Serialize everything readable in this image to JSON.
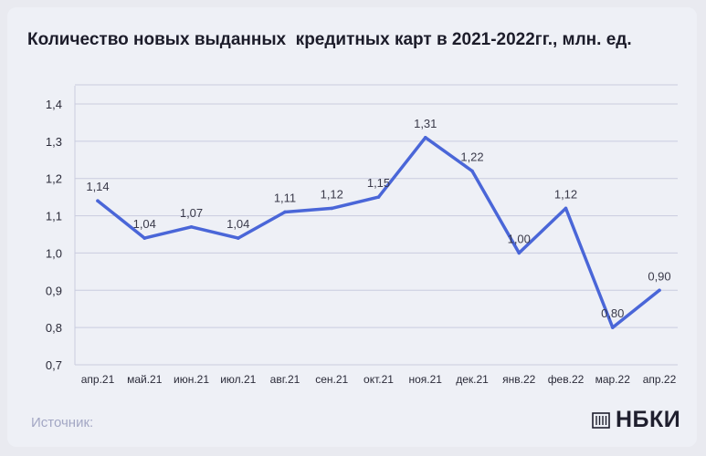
{
  "chart_data": {
    "type": "line",
    "title": "Количество новых выданных  кредитных карт в 2021-2022гг., млн. ед.",
    "categories": [
      "апр.21",
      "май.21",
      "июн.21",
      "июл.21",
      "авг.21",
      "сен.21",
      "окт.21",
      "ноя.21",
      "дек.21",
      "янв.22",
      "фев.22",
      "мар.22",
      "апр.22"
    ],
    "values": [
      1.14,
      1.04,
      1.07,
      1.04,
      1.11,
      1.12,
      1.15,
      1.31,
      1.22,
      1.0,
      1.12,
      0.8,
      0.9
    ],
    "value_labels": [
      "1,14",
      "1,04",
      "1,07",
      "1,04",
      "1,11",
      "1,12",
      "1,15",
      "1,31",
      "1,22",
      "1,00",
      "1,12",
      "0,80",
      "0,90"
    ],
    "y_ticks": [
      0.7,
      0.8,
      0.9,
      1.0,
      1.1,
      1.2,
      1.3,
      1.4
    ],
    "y_tick_labels": [
      "0,7",
      "0,8",
      "0,9",
      "1,0",
      "1,1",
      "1,2",
      "1,3",
      "1,4"
    ],
    "ylim": [
      0.7,
      1.4
    ],
    "grid": true,
    "line_color": "#4a66d8",
    "xlabel": "",
    "ylabel": ""
  },
  "footer": {
    "source_label": "Источник:",
    "logo_text": "НБКИ",
    "logo_icon": "nbki-logo-icon"
  }
}
